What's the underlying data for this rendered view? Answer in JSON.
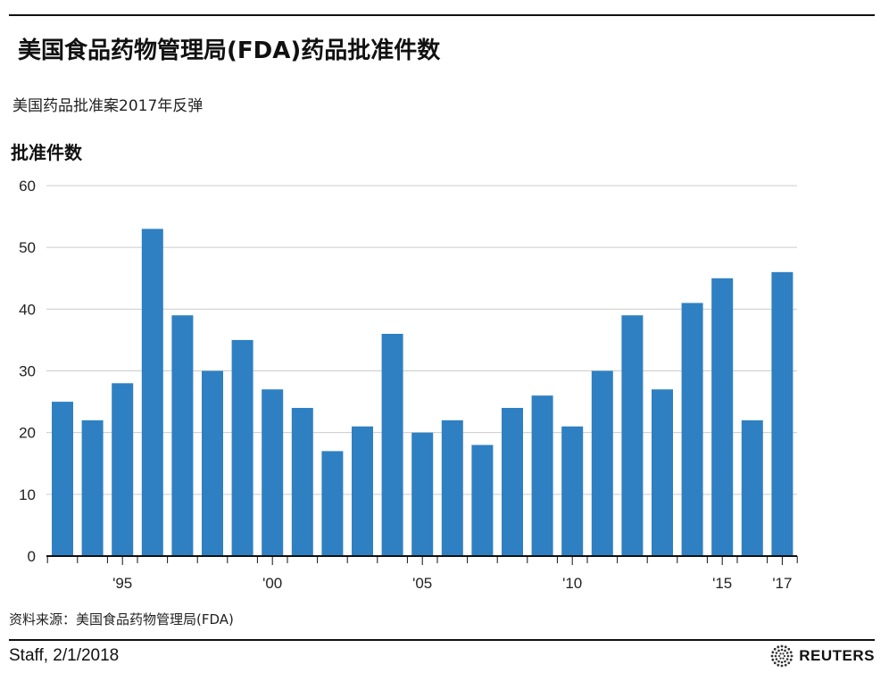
{
  "header": {
    "title": "美国食品药物管理局(FDA)药品批准件数",
    "subtitle": "美国药品批准案2017年反弹"
  },
  "footer": {
    "source": "资料来源：美国食品药物管理局(FDA)",
    "credit": "Staff, 2/1/2018",
    "brand": "REUTERS"
  },
  "chart_data": {
    "type": "bar",
    "title": "美国食品药物管理局(FDA)药品批准件数",
    "subtitle": "美国药品批准案2017年反弹",
    "ylabel": "批准件数",
    "xlabel": "",
    "categories": [
      1993,
      1994,
      1995,
      1996,
      1997,
      1998,
      1999,
      2000,
      2001,
      2002,
      2003,
      2004,
      2005,
      2006,
      2007,
      2008,
      2009,
      2010,
      2011,
      2012,
      2013,
      2014,
      2015,
      2016,
      2017
    ],
    "values": [
      25,
      22,
      28,
      53,
      39,
      30,
      35,
      27,
      24,
      17,
      21,
      36,
      20,
      22,
      18,
      24,
      26,
      21,
      30,
      39,
      27,
      41,
      45,
      22,
      46
    ],
    "ylim": [
      0,
      60
    ],
    "yticks": [
      0,
      10,
      20,
      30,
      40,
      50,
      60
    ],
    "xtick_labels": [
      {
        "year": 1995,
        "label": "'95"
      },
      {
        "year": 2000,
        "label": "'00"
      },
      {
        "year": 2005,
        "label": "'05"
      },
      {
        "year": 2010,
        "label": "'10"
      },
      {
        "year": 2015,
        "label": "'15"
      },
      {
        "year": 2017,
        "label": "'17"
      }
    ],
    "grid": true,
    "bar_color": "#2f80c2",
    "grid_color": "#cccccc"
  }
}
